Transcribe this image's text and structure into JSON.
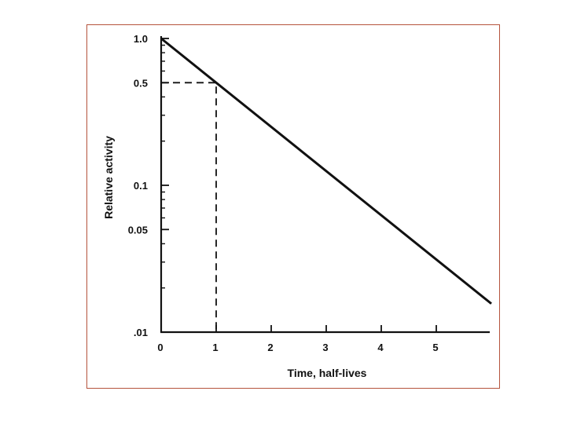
{
  "colors": {
    "frame": "#b5533c",
    "ink": "#111111"
  },
  "chart_data": {
    "type": "line",
    "title": "",
    "xlabel": "Time, half-lives",
    "ylabel": "Relative activity",
    "y_scale": "log",
    "xlim": [
      0,
      6
    ],
    "ylim": [
      0.01,
      1.0
    ],
    "x_ticks": [
      0,
      1,
      2,
      3,
      4,
      5
    ],
    "x_tick_labels": [
      "0",
      "1",
      "2",
      "3",
      "4",
      "5"
    ],
    "y_ticks": [
      0.01,
      0.05,
      0.1,
      0.5,
      1.0
    ],
    "y_tick_labels": [
      ".01",
      "0.05",
      "0.1",
      "0.5",
      "1.0"
    ],
    "grid": false,
    "series": [
      {
        "x": [
          0,
          6
        ],
        "y": [
          1.0,
          0.015625
        ]
      }
    ],
    "annotations": [
      {
        "type": "dashed-guide",
        "x": 1,
        "y": 0.5
      }
    ]
  }
}
